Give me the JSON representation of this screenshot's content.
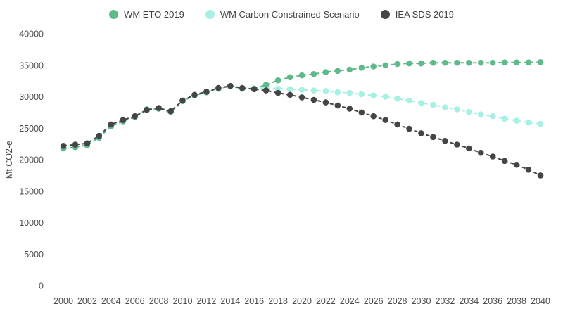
{
  "chart_data": {
    "type": "line",
    "title": "",
    "xlabel": "",
    "ylabel": "Mt CO2-e",
    "ylim": [
      0,
      40000
    ],
    "y_ticks": [
      0,
      5000,
      10000,
      15000,
      20000,
      25000,
      30000,
      35000,
      40000
    ],
    "x_tick_step": 2,
    "grid": false,
    "legend_position": "top",
    "marker": "circle",
    "line_style": "dashed",
    "draw_order": [
      1,
      0,
      2
    ],
    "x": [
      2000,
      2001,
      2002,
      2003,
      2004,
      2005,
      2006,
      2007,
      2008,
      2009,
      2010,
      2011,
      2012,
      2013,
      2014,
      2015,
      2016,
      2017,
      2018,
      2019,
      2020,
      2021,
      2022,
      2023,
      2024,
      2025,
      2026,
      2027,
      2028,
      2029,
      2030,
      2031,
      2032,
      2033,
      2034,
      2035,
      2036,
      2037,
      2038,
      2039,
      2040
    ],
    "series": [
      {
        "name": "WM ETO 2019",
        "color": "#5fb98a",
        "values": [
          21800,
          22000,
          22300,
          23500,
          25300,
          26100,
          26800,
          28000,
          28100,
          27600,
          29300,
          30200,
          30700,
          31300,
          31700,
          31300,
          31300,
          31900,
          32600,
          33100,
          33400,
          33600,
          33900,
          34100,
          34300,
          34600,
          34800,
          35000,
          35200,
          35300,
          35300,
          35400,
          35400,
          35400,
          35400,
          35400,
          35400,
          35450,
          35450,
          35450,
          35500
        ]
      },
      {
        "name": "WM Carbon Constrained Scenario",
        "color": "#a8f0e3",
        "values": [
          21800,
          22000,
          22300,
          23500,
          25300,
          26100,
          26800,
          28000,
          28100,
          27600,
          29300,
          30200,
          30700,
          31300,
          31700,
          31300,
          31300,
          31400,
          31300,
          31200,
          31100,
          31000,
          30900,
          30700,
          30600,
          30400,
          30200,
          30000,
          29700,
          29400,
          29000,
          28700,
          28300,
          28000,
          27600,
          27200,
          26900,
          26500,
          26200,
          25900,
          25700
        ]
      },
      {
        "name": "IEA SDS 2019",
        "color": "#454545",
        "values": [
          22200,
          22400,
          22600,
          23800,
          25600,
          26300,
          26900,
          27900,
          28200,
          27700,
          29400,
          30300,
          30800,
          31400,
          31700,
          31400,
          31200,
          31000,
          30600,
          30300,
          29900,
          29500,
          29100,
          28600,
          28100,
          27500,
          26900,
          26300,
          25600,
          24900,
          24200,
          23600,
          23000,
          22400,
          21800,
          21100,
          20500,
          19800,
          19200,
          18400,
          17500
        ]
      }
    ]
  }
}
